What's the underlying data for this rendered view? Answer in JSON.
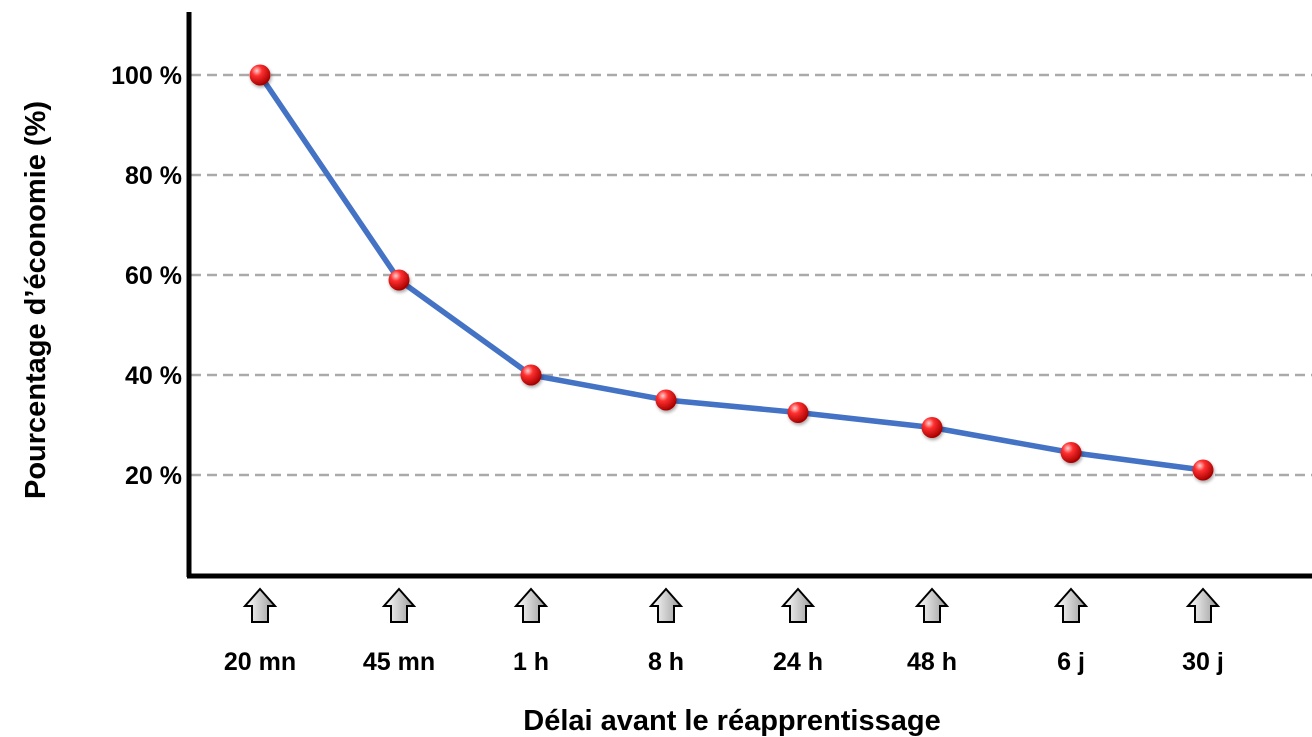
{
  "chart_data": {
    "type": "line",
    "title": "",
    "xlabel": "Délai avant le réapprentissage",
    "ylabel": "Pourcentage d’économie (%)",
    "categories": [
      "20 mn",
      "45 mn",
      "1 h",
      "8 h",
      "24 h",
      "48 h",
      "6 j",
      "30 j"
    ],
    "series": [
      {
        "values": [
          100,
          59,
          40,
          35,
          32.5,
          29.5,
          24.5,
          21
        ]
      }
    ],
    "yticks": [
      20,
      40,
      60,
      80,
      100
    ],
    "ytick_labels": [
      "20 %",
      "40 %",
      "60 %",
      "80 %",
      "100 %"
    ],
    "ylim": [
      0,
      100
    ],
    "grid": "horizontal dashed",
    "line_color": "#4472C4",
    "marker_color": "#E8141B",
    "x_marker": "up-arrow"
  }
}
